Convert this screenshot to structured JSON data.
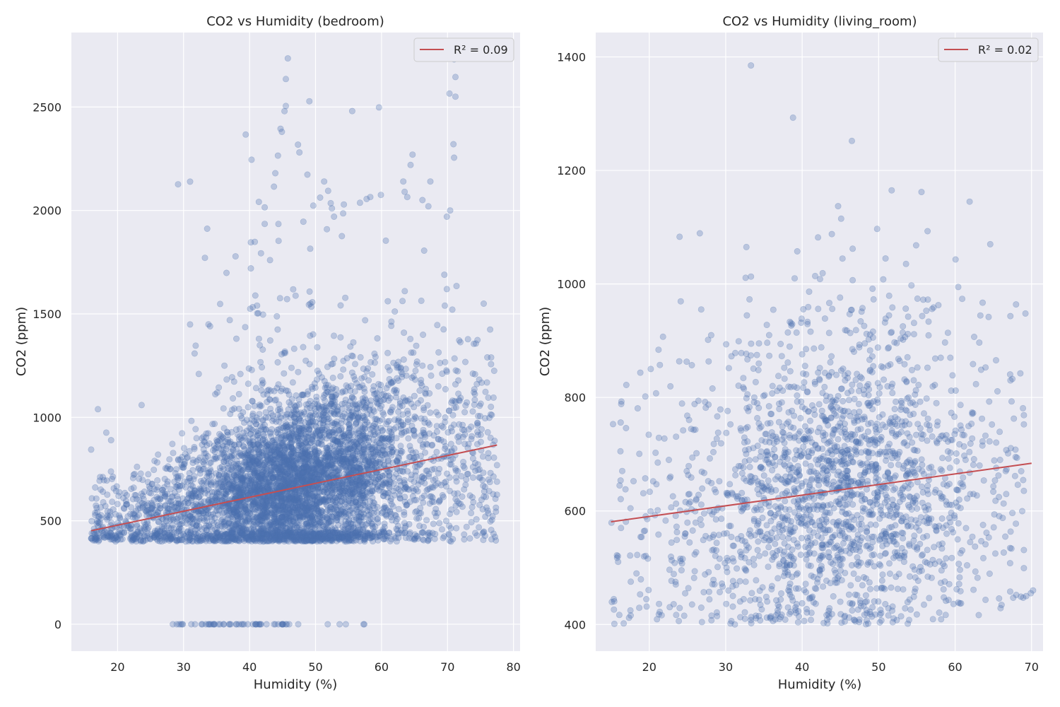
{
  "colors": {
    "background": "#eaeaf2",
    "grid": "#ffffff",
    "points": "#4c72b0",
    "fit_line": "#c44e52",
    "text": "#262626"
  },
  "chart_data": [
    {
      "type": "scatter",
      "title": "CO2 vs Humidity (bedroom)",
      "xlabel": "Humidity (%)",
      "ylabel": "CO2 (ppm)",
      "xlim": [
        13,
        81
      ],
      "ylim": [
        -130,
        2860
      ],
      "xticks": [
        20,
        30,
        40,
        50,
        60,
        70,
        80
      ],
      "yticks": [
        0,
        500,
        1000,
        1500,
        2000,
        2500
      ],
      "grid": true,
      "legend": {
        "position": "top-right",
        "entries": [
          "R² = 0.09"
        ]
      },
      "fit_line": {
        "x": [
          16,
          77.5
        ],
        "y": [
          452,
          866
        ]
      },
      "point_alpha": 0.3,
      "generator": {
        "n": 5500,
        "seed": 17,
        "x_range": [
          16,
          77.5
        ],
        "x_peak": 47,
        "y_floor": 400,
        "y_base": 452,
        "y_slope": 6.7,
        "outlier_fraction": 0.04,
        "outlier_max": 2750,
        "zero_count": 60,
        "zero_x_range": [
          28,
          59
        ]
      },
      "highlight_points": [
        {
          "x": 45.8,
          "y": 2735
        },
        {
          "x": 45.5,
          "y": 2635
        },
        {
          "x": 45.5,
          "y": 2505
        },
        {
          "x": 45.3,
          "y": 2480
        },
        {
          "x": 44.7,
          "y": 2395
        },
        {
          "x": 44.9,
          "y": 2380
        },
        {
          "x": 44.3,
          "y": 2265
        },
        {
          "x": 43.9,
          "y": 2180
        },
        {
          "x": 43.7,
          "y": 2115
        },
        {
          "x": 71.0,
          "y": 2730
        },
        {
          "x": 71.2,
          "y": 2645
        },
        {
          "x": 70.3,
          "y": 2565
        },
        {
          "x": 71.2,
          "y": 2550
        },
        {
          "x": 70.9,
          "y": 2320
        },
        {
          "x": 71.0,
          "y": 2255
        },
        {
          "x": 70.4,
          "y": 2000
        },
        {
          "x": 69.9,
          "y": 1970
        },
        {
          "x": 51.3,
          "y": 2140
        },
        {
          "x": 51.9,
          "y": 2095
        },
        {
          "x": 52.3,
          "y": 2035
        },
        {
          "x": 52.8,
          "y": 1970
        },
        {
          "x": 49.2,
          "y": 1815
        },
        {
          "x": 64.7,
          "y": 2270
        },
        {
          "x": 64.4,
          "y": 2220
        },
        {
          "x": 63.3,
          "y": 2140
        },
        {
          "x": 63.5,
          "y": 2090
        },
        {
          "x": 63.9,
          "y": 2065
        },
        {
          "x": 67.4,
          "y": 2140
        },
        {
          "x": 67.1,
          "y": 2020
        },
        {
          "x": 66.2,
          "y": 2050
        },
        {
          "x": 58.3,
          "y": 2065
        },
        {
          "x": 59.9,
          "y": 2075
        },
        {
          "x": 42.3,
          "y": 2015
        },
        {
          "x": 42.3,
          "y": 1935
        },
        {
          "x": 43.1,
          "y": 1760
        },
        {
          "x": 40.2,
          "y": 1720
        },
        {
          "x": 40.1,
          "y": 1525
        },
        {
          "x": 37.0,
          "y": 1470
        },
        {
          "x": 38.0,
          "y": 1380
        },
        {
          "x": 36.2,
          "y": 1250
        },
        {
          "x": 35.1,
          "y": 1120
        },
        {
          "x": 66.2,
          "y": 1250
        },
        {
          "x": 69.6,
          "y": 1540
        },
        {
          "x": 69.9,
          "y": 1620
        },
        {
          "x": 69.4,
          "y": 1425
        }
      ]
    },
    {
      "type": "scatter",
      "title": "CO2 vs Humidity (living_room)",
      "xlabel": "Humidity (%)",
      "ylabel": "CO2 (ppm)",
      "xlim": [
        13,
        71.5
      ],
      "ylim": [
        353,
        1443
      ],
      "xticks": [
        20,
        30,
        40,
        50,
        60,
        70
      ],
      "yticks": [
        400,
        600,
        800,
        1000,
        1200,
        1400
      ],
      "grid": true,
      "legend": {
        "position": "top-right",
        "entries": [
          "R² = 0.02"
        ]
      },
      "fit_line": {
        "x": [
          15,
          70
        ],
        "y": [
          581,
          684
        ]
      },
      "point_alpha": 0.3,
      "generator": {
        "n": 2100,
        "seed": 29,
        "x_range": [
          15,
          69
        ],
        "x_peak": 45,
        "y_floor": 400,
        "y_base": 581,
        "y_slope": 1.87,
        "outlier_fraction": 0.03,
        "outlier_max": 1170,
        "zero_count": 0,
        "zero_x_range": [
          0,
          0
        ]
      },
      "highlight_points": [
        {
          "x": 33.3,
          "y": 1385
        },
        {
          "x": 38.8,
          "y": 1293
        },
        {
          "x": 46.5,
          "y": 1252
        },
        {
          "x": 51.7,
          "y": 1165
        },
        {
          "x": 55.6,
          "y": 1162
        },
        {
          "x": 61.9,
          "y": 1145
        },
        {
          "x": 44.7,
          "y": 1137
        },
        {
          "x": 45.1,
          "y": 1115
        },
        {
          "x": 49.8,
          "y": 1097
        },
        {
          "x": 56.4,
          "y": 1093
        },
        {
          "x": 64.6,
          "y": 1070
        },
        {
          "x": 54.9,
          "y": 1068
        },
        {
          "x": 32.7,
          "y": 1065
        },
        {
          "x": 46.6,
          "y": 1062
        },
        {
          "x": 33.3,
          "y": 1013
        },
        {
          "x": 63.6,
          "y": 967
        },
        {
          "x": 69.2,
          "y": 948
        },
        {
          "x": 26.8,
          "y": 955
        },
        {
          "x": 21.8,
          "y": 907
        },
        {
          "x": 67.2,
          "y": 458
        },
        {
          "x": 68.0,
          "y": 452
        },
        {
          "x": 68.6,
          "y": 449
        },
        {
          "x": 69.3,
          "y": 450
        },
        {
          "x": 69.9,
          "y": 455
        },
        {
          "x": 70.2,
          "y": 460
        },
        {
          "x": 67.6,
          "y": 447
        },
        {
          "x": 68.9,
          "y": 447
        }
      ]
    }
  ]
}
